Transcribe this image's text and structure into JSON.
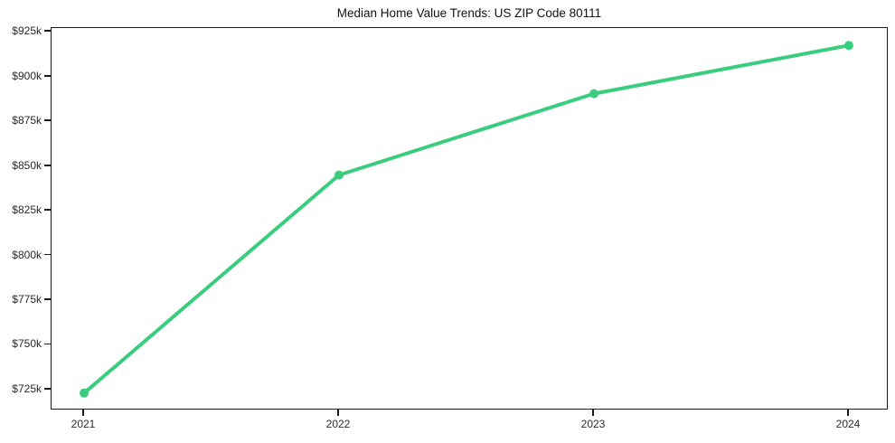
{
  "chart_data": {
    "type": "line",
    "title": "Median Home Value Trends: US ZIP Code 80111",
    "categories": [
      "2021",
      "2022",
      "2023",
      "2024"
    ],
    "series": [
      {
        "name": "Median Home Value",
        "values": [
          723000,
          845000,
          890500,
          917500
        ],
        "color": "#3bcd7e",
        "marker": "circle"
      }
    ],
    "y_tick_values": [
      725000,
      750000,
      775000,
      800000,
      825000,
      850000,
      875000,
      900000,
      925000
    ],
    "y_tick_labels": [
      "$725k",
      "$750k",
      "$775k",
      "$800k",
      "$825k",
      "$850k",
      "$875k",
      "$900k",
      "$925k"
    ],
    "ylim": [
      713300,
      927200
    ],
    "xlabel": "",
    "ylabel": "",
    "grid": false,
    "legend": "none",
    "background_color": "#ffffff",
    "spine_color": "#1c1c1c",
    "tick_label_color": "#2a2a2a"
  }
}
